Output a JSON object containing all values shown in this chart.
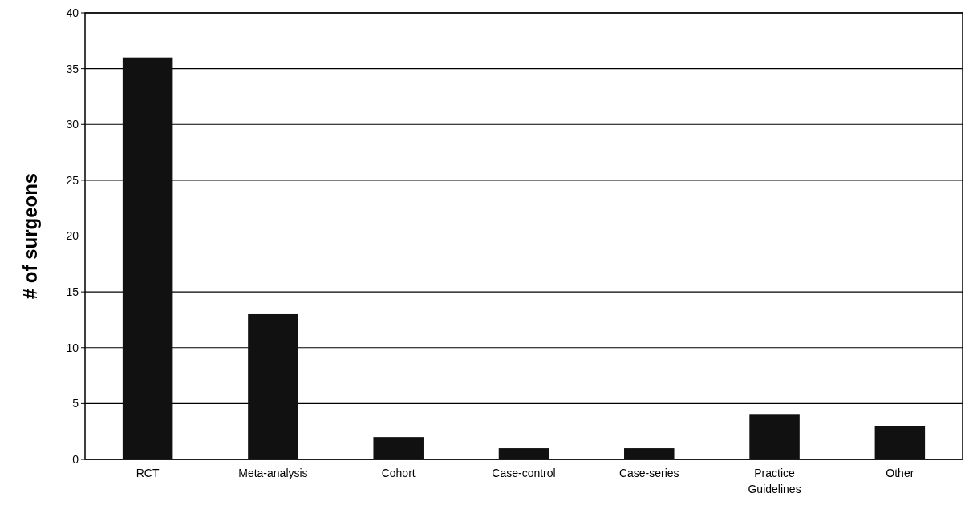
{
  "chart_data": {
    "type": "bar",
    "ylabel": "# of surgeons",
    "categories": [
      "RCT",
      "Meta-analysis",
      "Cohort",
      "Case-control",
      "Case-series",
      "Practice Guidelines",
      "Other"
    ],
    "values": [
      36,
      13,
      2,
      1,
      1,
      4,
      3
    ],
    "color": "#111111",
    "ylim": [
      0,
      40
    ],
    "yticks": [
      0,
      5,
      10,
      15,
      20,
      25,
      30,
      35,
      40
    ],
    "grid": "y"
  }
}
